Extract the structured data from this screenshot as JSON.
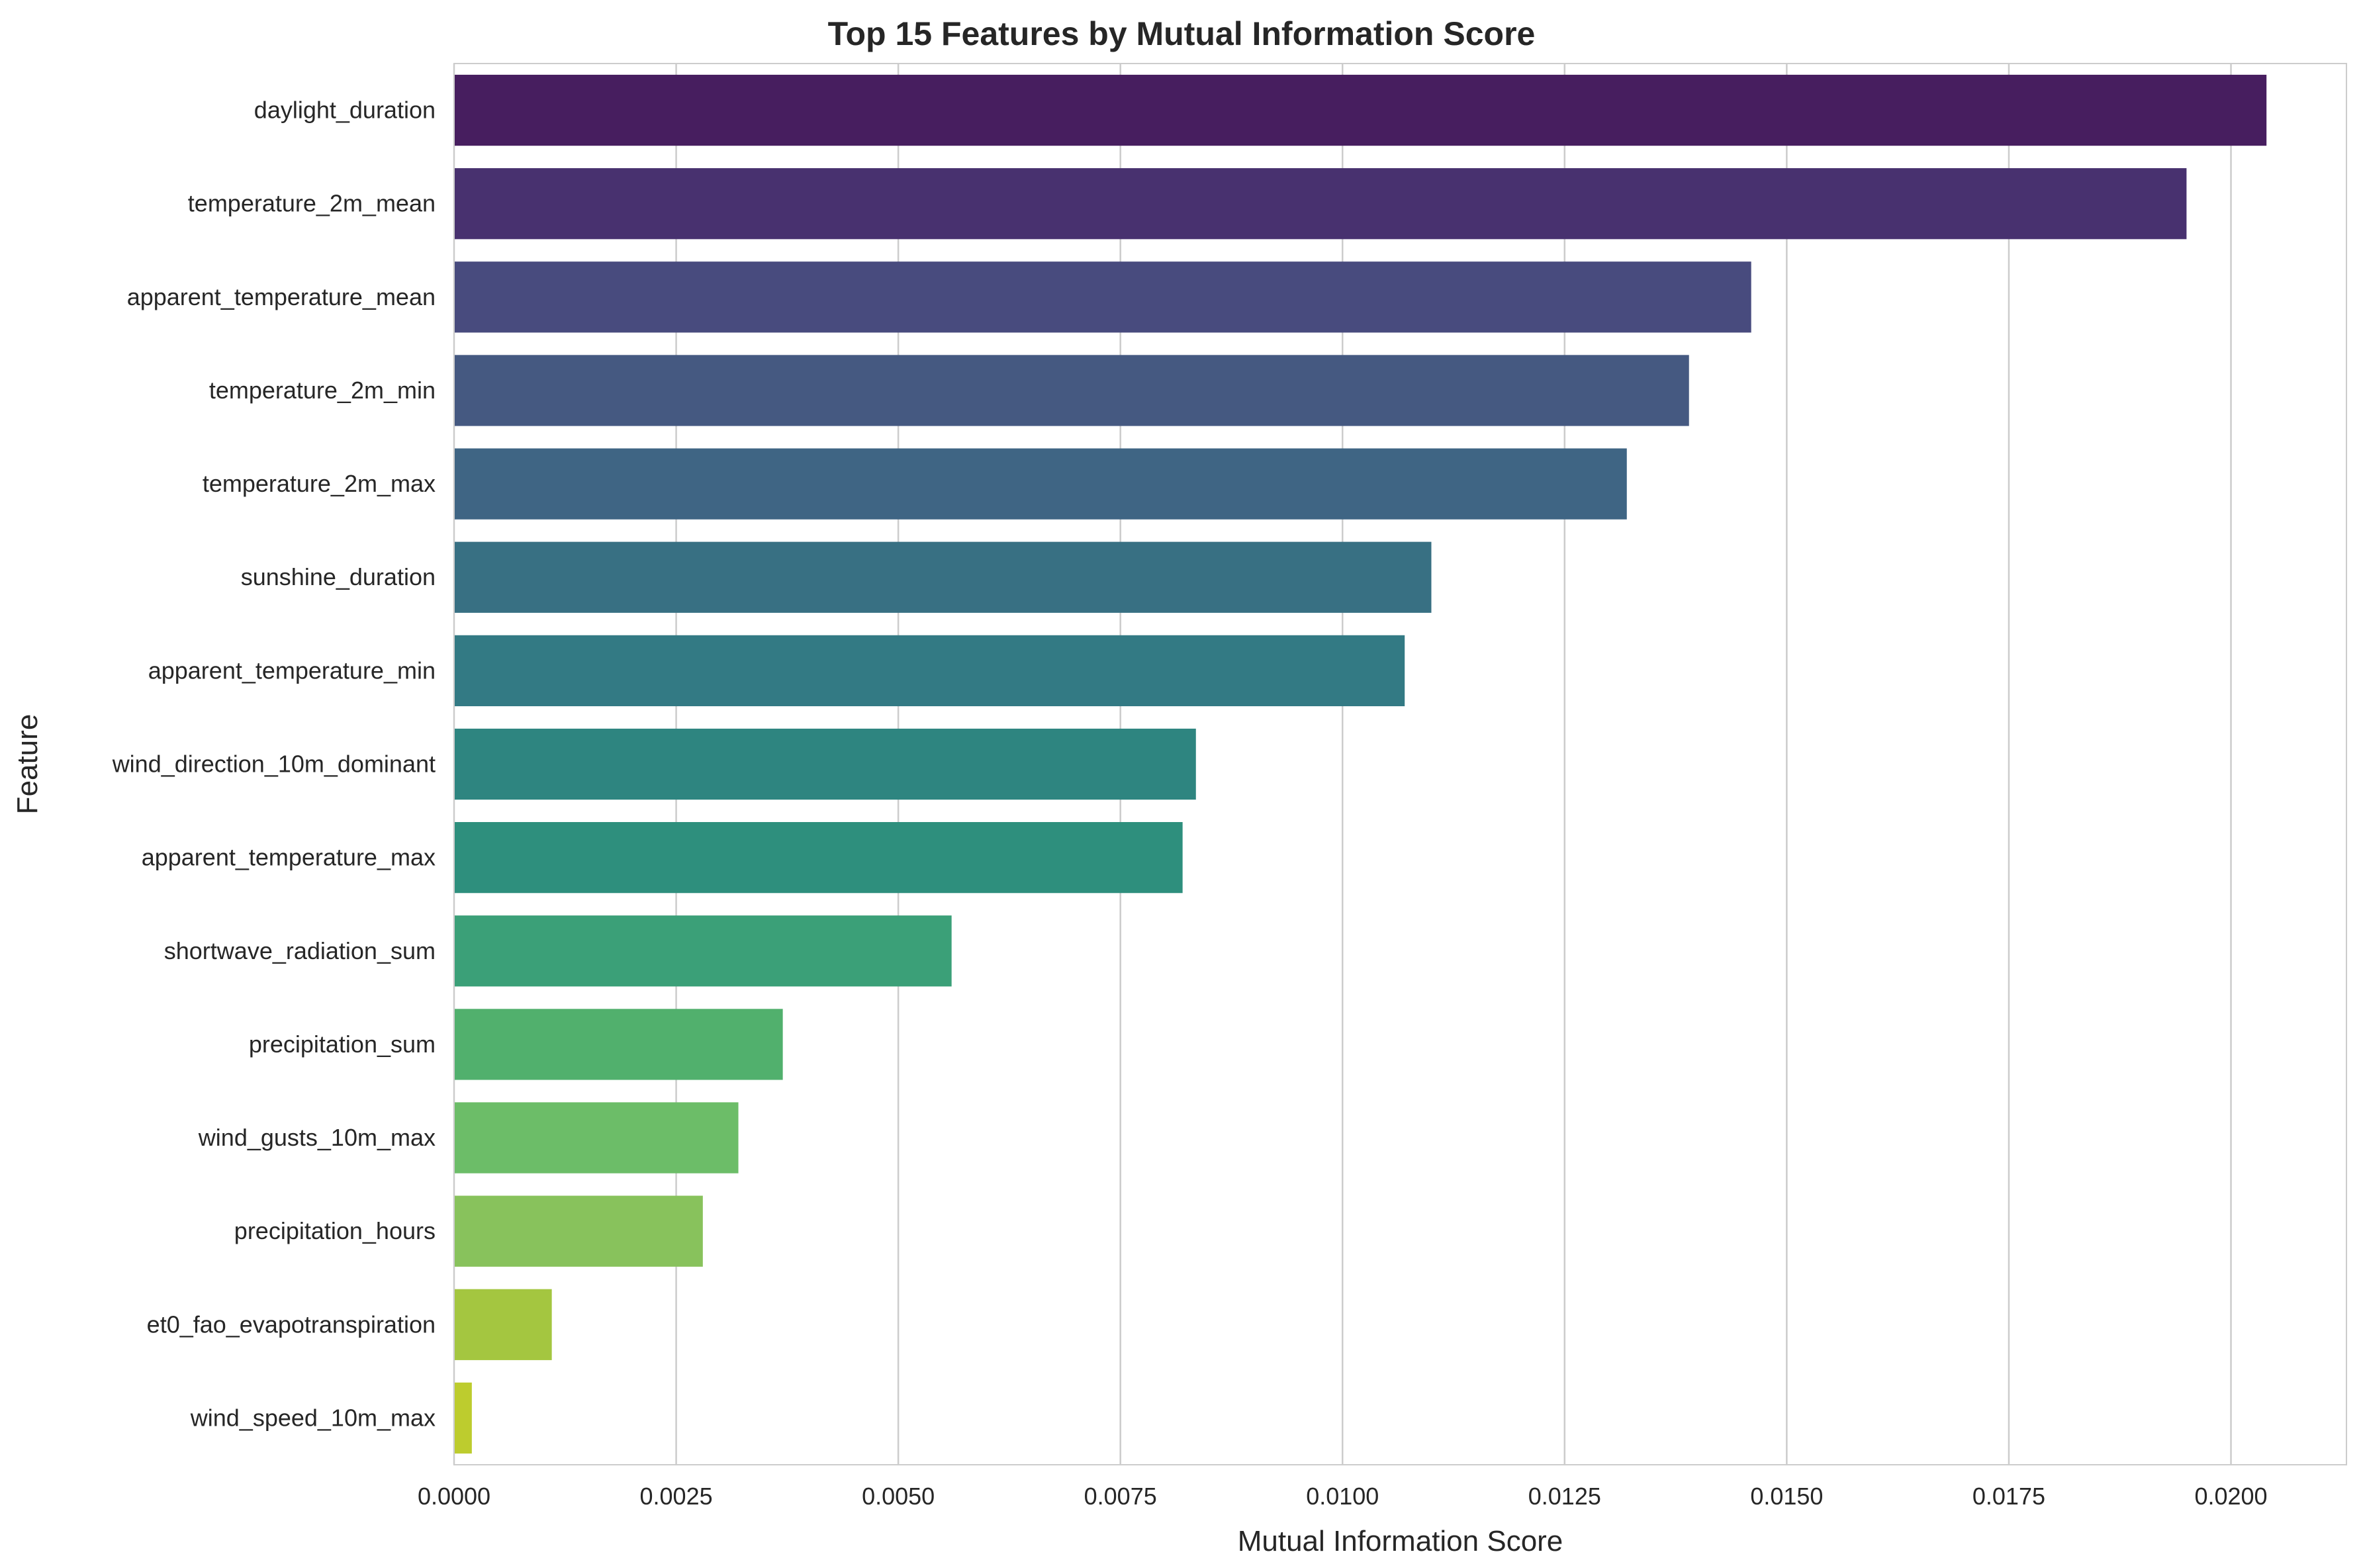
{
  "chart_data": {
    "type": "bar",
    "orientation": "horizontal",
    "title": "Top 15 Features by Mutual Information Score",
    "xlabel": "Mutual Information Score",
    "ylabel": "Feature",
    "xlim": [
      0,
      0.0213
    ],
    "x_ticks": [
      0.0,
      0.0025,
      0.005,
      0.0075,
      0.01,
      0.0125,
      0.015,
      0.0175,
      0.02
    ],
    "x_tick_labels": [
      "0.0000",
      "0.0025",
      "0.0050",
      "0.0075",
      "0.0100",
      "0.0125",
      "0.0150",
      "0.0175",
      "0.0200"
    ],
    "grid": true,
    "categories": [
      "daylight_duration",
      "temperature_2m_mean",
      "apparent_temperature_mean",
      "temperature_2m_min",
      "temperature_2m_max",
      "sunshine_duration",
      "apparent_temperature_min",
      "wind_direction_10m_dominant",
      "apparent_temperature_max",
      "shortwave_radiation_sum",
      "precipitation_sum",
      "wind_gusts_10m_max",
      "precipitation_hours",
      "et0_fao_evapotranspiration",
      "wind_speed_10m_max"
    ],
    "values": [
      0.0204,
      0.0195,
      0.0146,
      0.0139,
      0.0132,
      0.011,
      0.0107,
      0.00835,
      0.0082,
      0.0056,
      0.0037,
      0.0032,
      0.0028,
      0.0011,
      0.0002
    ],
    "colors": [
      "#471e5f",
      "#48316f",
      "#484b7e",
      "#455981",
      "#3f6584",
      "#387083",
      "#337a84",
      "#2e8580",
      "#2e8f7d",
      "#3ba078",
      "#51b06d",
      "#6cbd68",
      "#88c25c",
      "#a4c640",
      "#bdcc2e"
    ],
    "palette": "viridis"
  }
}
